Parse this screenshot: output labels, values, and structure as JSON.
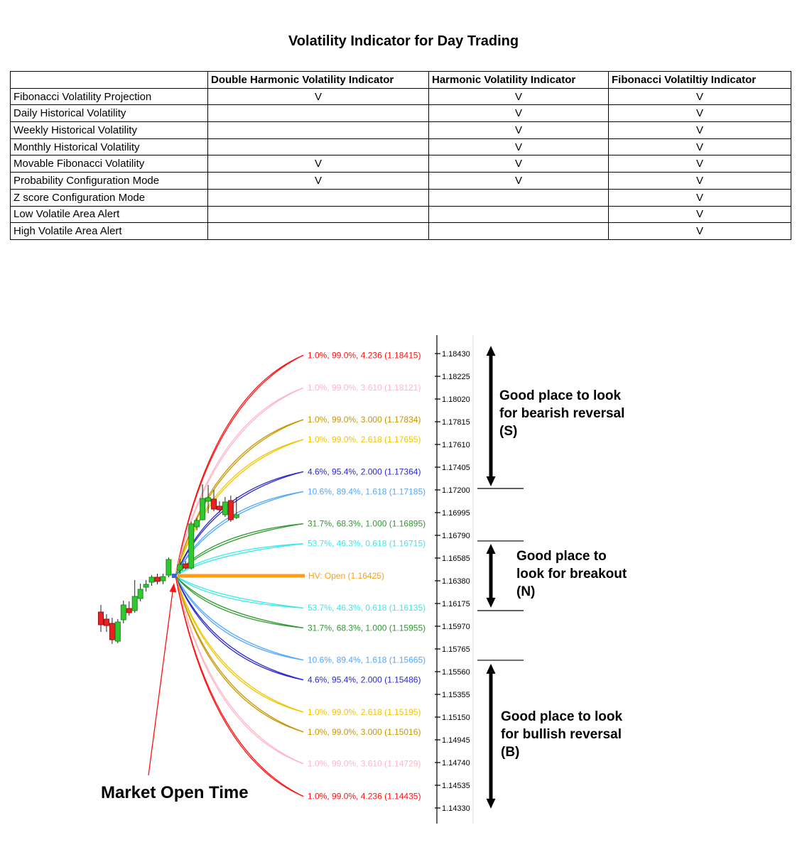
{
  "title": "Volatility Indicator for Day Trading",
  "comparison_table": {
    "columns": [
      "",
      "Double Harmonic Volatility Indicator",
      "Harmonic Volatility Indicator",
      "Fibonacci Volatiltiy Indicator"
    ],
    "rows": [
      {
        "feature": "Fibonacci Volatility Projection",
        "values": [
          "V",
          "V",
          "V"
        ]
      },
      {
        "feature": "Daily Historical Volatility",
        "values": [
          "",
          "V",
          "V"
        ]
      },
      {
        "feature": "Weekly Historical Volatility",
        "values": [
          "",
          "V",
          "V"
        ]
      },
      {
        "feature": "Monthly Historical Volatility",
        "values": [
          "",
          "V",
          "V"
        ]
      },
      {
        "feature": "Movable Fibonacci Volatility",
        "values": [
          "V",
          "V",
          "V"
        ]
      },
      {
        "feature": "Probability Configuration Mode",
        "values": [
          "V",
          "V",
          "V"
        ]
      },
      {
        "feature": "Z score Configuration Mode",
        "values": [
          "",
          "",
          "V"
        ]
      },
      {
        "feature": "Low Volatile Area Alert",
        "values": [
          "",
          "",
          "V"
        ]
      },
      {
        "feature": "High Volatile Area Alert",
        "values": [
          "",
          "",
          "V"
        ]
      }
    ]
  },
  "colors": {
    "red": "#FF1212",
    "pink": "#FFB6C6",
    "dark_yellow": "#C79600",
    "yellow": "#F2C500",
    "blue": "#2929CC",
    "light_blue": "#4FA8FF",
    "green": "#2E9B2E",
    "cyan": "#38E8E8",
    "orange": "#FF9E16",
    "candle_up": "#2FC82F",
    "candle_up_border": "#1E8C1E",
    "candle_down": "#E62222",
    "candle_down_border": "#A01010",
    "wick": "#222222",
    "open_marker": "#3C64D2",
    "axis": "#000000",
    "guide": "#DCDCDC",
    "annotation": "#000000"
  },
  "chart_data": {
    "type": "candlestick",
    "y_axis": {
      "ticks": [
        "1.18430",
        "1.18225",
        "1.18020",
        "1.17815",
        "1.17610",
        "1.17405",
        "1.17200",
        "1.16995",
        "1.16790",
        "1.16585",
        "1.16380",
        "1.16175",
        "1.15970",
        "1.15765",
        "1.15560",
        "1.15355",
        "1.15150",
        "1.14945",
        "1.14740",
        "1.14535",
        "1.14330"
      ]
    },
    "candles": [
      {
        "o": 1.16098,
        "h": 1.16162,
        "l": 1.15919,
        "c": 1.15983
      },
      {
        "o": 1.16034,
        "h": 1.16079,
        "l": 1.15919,
        "c": 1.15976
      },
      {
        "o": 1.15996,
        "h": 1.16047,
        "l": 1.1581,
        "c": 1.15848
      },
      {
        "o": 1.15835,
        "h": 1.16034,
        "l": 1.15816,
        "c": 1.16008
      },
      {
        "o": 1.16028,
        "h": 1.16201,
        "l": 1.15996,
        "c": 1.16162
      },
      {
        "o": 1.1613,
        "h": 1.16194,
        "l": 1.16066,
        "c": 1.16092
      },
      {
        "o": 1.16111,
        "h": 1.16387,
        "l": 1.16092,
        "c": 1.16239
      },
      {
        "o": 1.1622,
        "h": 1.16355,
        "l": 1.16194,
        "c": 1.16303
      },
      {
        "o": 1.16322,
        "h": 1.16387,
        "l": 1.16284,
        "c": 1.16348
      },
      {
        "o": 1.16367,
        "h": 1.16431,
        "l": 1.16335,
        "c": 1.16412
      },
      {
        "o": 1.16412,
        "h": 1.16444,
        "l": 1.16348,
        "c": 1.16374
      },
      {
        "o": 1.1638,
        "h": 1.16444,
        "l": 1.16348,
        "c": 1.16418
      },
      {
        "o": 1.16431,
        "h": 1.16591,
        "l": 1.16412,
        "c": 1.16572
      },
      null,
      {
        "o": 1.16476,
        "h": 1.16578,
        "l": 1.16444,
        "c": 1.16527
      },
      {
        "o": 1.16533,
        "h": 1.16559,
        "l": 1.16482,
        "c": 1.16495
      },
      {
        "o": 1.16495,
        "h": 1.16912,
        "l": 1.16482,
        "c": 1.16893
      },
      {
        "o": 1.16867,
        "h": 1.16944,
        "l": 1.16835,
        "c": 1.16925
      },
      {
        "o": 1.16931,
        "h": 1.17251,
        "l": 1.16925,
        "c": 1.17123
      },
      {
        "o": 1.17098,
        "h": 1.17245,
        "l": 1.16989,
        "c": 1.1713
      },
      {
        "o": 1.17117,
        "h": 1.172,
        "l": 1.17008,
        "c": 1.17027
      },
      {
        "o": 1.17053,
        "h": 1.17098,
        "l": 1.16995,
        "c": 1.17021
      },
      {
        "o": 1.16976,
        "h": 1.17136,
        "l": 1.16957,
        "c": 1.17091
      },
      {
        "o": 1.17104,
        "h": 1.17149,
        "l": 1.16912,
        "c": 1.16931
      },
      {
        "o": 1.1695,
        "h": 1.17136,
        "l": 1.16938,
        "c": 1.16976
      }
    ],
    "open_marker": {
      "slot": 13,
      "price": 1.16425
    },
    "hv_line": {
      "label": "HV: Open (1.16425)",
      "price": 1.16425,
      "color": "orange"
    },
    "fan_lines": [
      {
        "label": "1.0%, 99.0%, 4.236 (1.18415)",
        "price": 1.18415,
        "color": "red"
      },
      {
        "label": "1.0%, 99.0%, 3.610 (1.18121)",
        "price": 1.18121,
        "color": "pink"
      },
      {
        "label": "1.0%, 99.0%, 3.000 (1.17834)",
        "price": 1.17834,
        "color": "dark_yellow"
      },
      {
        "label": "1.0%, 99.0%, 2.618 (1.17655)",
        "price": 1.17655,
        "color": "yellow"
      },
      {
        "label": "4.6%, 95.4%, 2.000 (1.17364)",
        "price": 1.17364,
        "color": "blue"
      },
      {
        "label": "10.6%, 89.4%, 1.618 (1.17185)",
        "price": 1.17185,
        "color": "light_blue"
      },
      {
        "label": "31.7%, 68.3%, 1.000 (1.16895)",
        "price": 1.16895,
        "color": "green"
      },
      {
        "label": "53.7%, 46.3%, 0.618 (1.16715)",
        "price": 1.16715,
        "color": "cyan"
      },
      {
        "label": "53.7%, 46.3%, 0.618 (1.16135)",
        "price": 1.16135,
        "color": "cyan"
      },
      {
        "label": "31.7%, 68.3%, 1.000 (1.15955)",
        "price": 1.15955,
        "color": "green"
      },
      {
        "label": "10.6%, 89.4%, 1.618 (1.15665)",
        "price": 1.15665,
        "color": "light_blue"
      },
      {
        "label": "4.6%, 95.4%, 2.000 (1.15486)",
        "price": 1.15486,
        "color": "blue"
      },
      {
        "label": "1.0%, 99.0%, 2.618 (1.15195)",
        "price": 1.15195,
        "color": "yellow"
      },
      {
        "label": "1.0%, 99.0%, 3.000 (1.15016)",
        "price": 1.15016,
        "color": "dark_yellow"
      },
      {
        "label": "1.0%, 99.0%, 3.610 (1.14729)",
        "price": 1.14729,
        "color": "pink"
      },
      {
        "label": "1.0%, 99.0%, 4.236 (1.14435)",
        "price": 1.14435,
        "color": "red"
      }
    ],
    "zone_boundary_prices": [
      1.17213,
      1.16739,
      1.16111,
      1.15663
    ],
    "zones": [
      {
        "name": "bearish-reversal",
        "lines": [
          "Good place to look",
          "for bearish reversal",
          "(S)"
        ],
        "arrow_from": 1.185,
        "arrow_to": 1.17232
      },
      {
        "name": "breakout",
        "lines": [
          "Good place to",
          "look for breakout",
          "(N)"
        ],
        "arrow_from": 1.16713,
        "arrow_to": 1.16137
      },
      {
        "name": "bullish-reversal",
        "lines": [
          "Good place to look",
          "for bullish reversal",
          "(B)"
        ],
        "arrow_from": 1.15631,
        "arrow_to": 1.14324
      }
    ],
    "market_open_label": "Market Open Time"
  }
}
